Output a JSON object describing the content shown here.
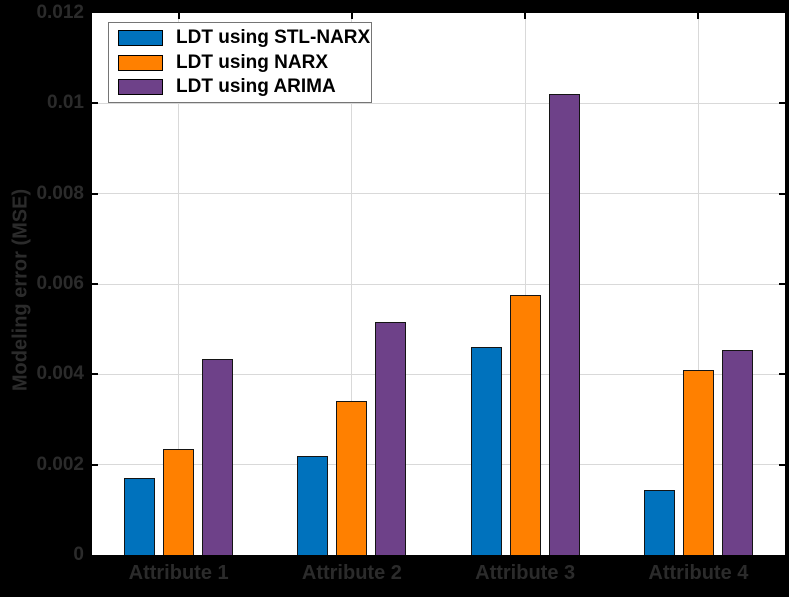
{
  "chart_data": {
    "type": "bar",
    "title": "",
    "xlabel": "",
    "ylabel": "Modeling error (MSE)",
    "categories": [
      "Attribute 1",
      "Attribute 2",
      "Attribute 3",
      "Attribute 4"
    ],
    "series": [
      {
        "name": "LDT using STL-NARX",
        "color": "#0072BD",
        "values": [
          0.0017,
          0.0022,
          0.0046,
          0.00145
        ]
      },
      {
        "name": "LDT using NARX",
        "color": "#FF8000",
        "values": [
          0.00235,
          0.0034,
          0.00575,
          0.0041
        ]
      },
      {
        "name": "LDT using ARIMA",
        "color": "#6E4189",
        "values": [
          0.00435,
          0.00515,
          0.0102,
          0.00455
        ]
      }
    ],
    "ylim": [
      0,
      0.012
    ],
    "ytick_values": [
      0,
      0.002,
      0.004,
      0.006,
      0.008,
      0.01,
      0.012
    ],
    "ytick_labels": [
      "0",
      "0.002",
      "0.004",
      "0.006",
      "0.008",
      "0.01",
      "0.012"
    ],
    "grid": "on",
    "legend_position": "top-left",
    "colors": {
      "figure_background": "#000000",
      "plot_background": "#ffffff",
      "gridline": "#d9d9d9",
      "axis": "#000000",
      "tick_text": "#2b2b2b",
      "legend_text": "#000000",
      "legend_border": "#757575"
    }
  }
}
